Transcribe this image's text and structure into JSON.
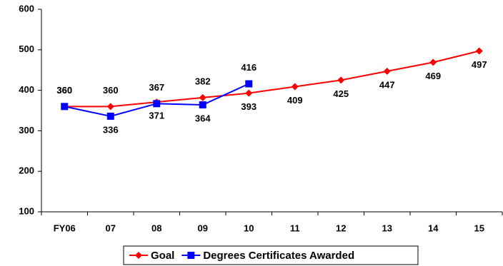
{
  "chart_data": {
    "type": "line",
    "categories": [
      "FY06",
      "07",
      "08",
      "09",
      "10",
      "11",
      "12",
      "13",
      "14",
      "15"
    ],
    "series": [
      {
        "name": "Goal",
        "color": "#ff0000",
        "marker": "diamond",
        "values": [
          360,
          360,
          371,
          382,
          393,
          409,
          425,
          447,
          469,
          497
        ]
      },
      {
        "name": "Degrees Certificates Awarded",
        "color": "#0000ff",
        "marker": "square",
        "values": [
          360,
          336,
          367,
          364,
          416,
          null,
          null,
          null,
          null,
          null
        ]
      }
    ],
    "ylim": [
      100,
      600
    ],
    "yticks": [
      100,
      200,
      300,
      400,
      500,
      600
    ],
    "grid": false,
    "legend": "bottom"
  }
}
